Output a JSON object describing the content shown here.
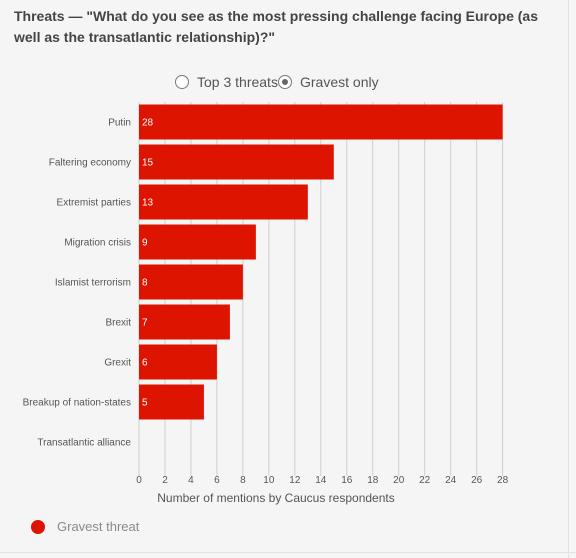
{
  "title": "Threats — \"What do you see as the most pressing challenge facing Europe (as well as the transatlantic relationship)?\"",
  "toggles": [
    {
      "label": "Top 3 threats",
      "selected": false
    },
    {
      "label": "Gravest only",
      "selected": true
    }
  ],
  "colors": {
    "bar": "#dd1500",
    "grid": "#cfcfd2",
    "text": "#555555"
  },
  "chart_data": {
    "type": "bar",
    "orientation": "horizontal",
    "categories": [
      "Putin",
      "Faltering economy",
      "Extremist parties",
      "Migration crisis",
      "Islamist terrorism",
      "Brexit",
      "Grexit",
      "Breakup of nation-states",
      "Transatlantic alliance"
    ],
    "series": [
      {
        "name": "Gravest threat",
        "values": [
          28,
          15,
          13,
          9,
          8,
          7,
          6,
          5,
          0
        ]
      }
    ],
    "data_labels": [
      "28",
      "15",
      "13",
      "9",
      "8",
      "7",
      "6",
      "5",
      ""
    ],
    "xlabel": "Number of mentions by Caucus respondents",
    "xlim": [
      0,
      28.8
    ],
    "xticks": [
      0,
      2,
      4,
      6,
      8,
      10,
      12,
      14,
      16,
      18,
      20,
      22,
      24,
      26,
      28
    ],
    "grid": true,
    "legend": "bottom-left"
  }
}
